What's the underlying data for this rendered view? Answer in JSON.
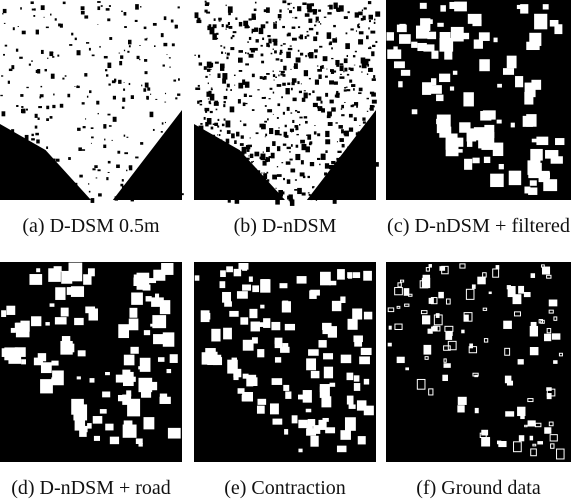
{
  "figure": {
    "panels": [
      {
        "caption": "(a) D-DSM 0.5m"
      },
      {
        "caption": "(b) D-nDSM"
      },
      {
        "caption": "(c) D-nDSM + filtered"
      },
      {
        "caption": "(d) D-nDSM + road"
      },
      {
        "caption": "(e) Contraction"
      },
      {
        "caption": "(f) Ground data"
      }
    ]
  }
}
